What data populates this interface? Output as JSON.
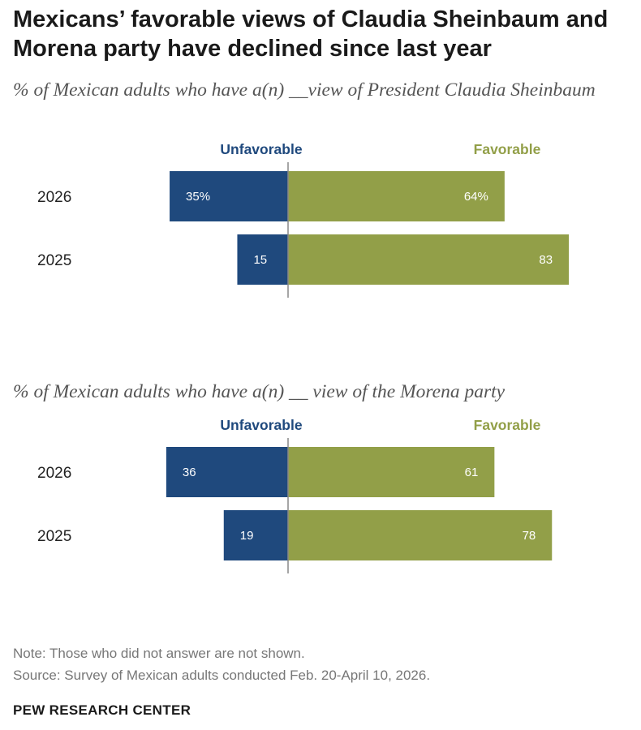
{
  "title": "Mexicans’ favorable views of Claudia Sheinbaum and Morena party have declined since last year",
  "chart_data": [
    {
      "type": "bar",
      "orientation": "horizontal-diverging",
      "subtitle": "% of Mexican adults who have a(n) __view of President Claudia Sheinbaum",
      "categories": [
        "2026",
        "2025"
      ],
      "series": [
        {
          "name": "Unfavorable",
          "values": [
            35,
            15
          ],
          "labels": [
            "35%",
            "15"
          ],
          "color": "#1f497d"
        },
        {
          "name": "Favorable",
          "values": [
            64,
            83
          ],
          "labels": [
            "64%",
            "83"
          ],
          "color": "#929f48"
        }
      ]
    },
    {
      "type": "bar",
      "orientation": "horizontal-diverging",
      "subtitle": "% of Mexican adults who have a(n) __ view of the Morena party",
      "categories": [
        "2026",
        "2025"
      ],
      "series": [
        {
          "name": "Unfavorable",
          "values": [
            36,
            19
          ],
          "labels": [
            "36",
            "19"
          ],
          "color": "#1f497d"
        },
        {
          "name": "Favorable",
          "values": [
            61,
            78
          ],
          "labels": [
            "61",
            "78"
          ],
          "color": "#929f48"
        }
      ]
    }
  ],
  "note": "Note: Those who did not answer are not shown.",
  "source": "Source: Survey of Mexican adults conducted Feb. 20-April 10, 2026.",
  "brand": "PEW RESEARCH CENTER"
}
